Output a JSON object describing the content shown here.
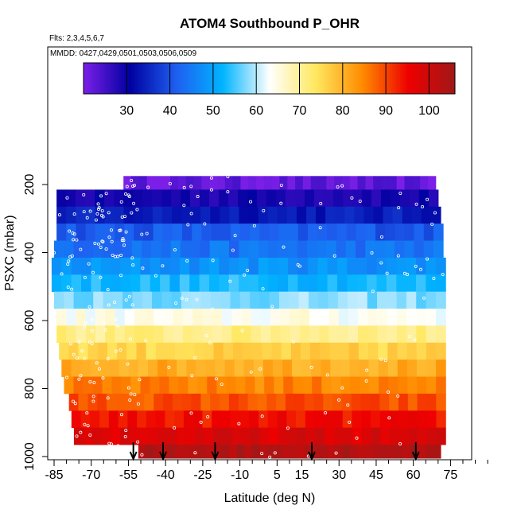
{
  "chart_data": {
    "type": "heatmap",
    "title": "ATOM4 Southbound P_OHR",
    "subtitle_flights": "Flts: 2,3,4,5,6,7",
    "subtitle_dates": "MMDD: 0427,0429,0501,0503,0506,0509",
    "xlabel": "Latitude (deg N)",
    "ylabel": "PSXC (mbar)",
    "xlim": [
      -86,
      92
    ],
    "ylim": [
      1000,
      80
    ],
    "x_ticks": [
      -85,
      -70,
      -55,
      -40,
      -25,
      -10,
      5,
      15,
      30,
      45,
      60,
      75
    ],
    "x_tick_labels": [
      "-85",
      "-70",
      "-55",
      "-40",
      "-25",
      "-10",
      "5",
      "15",
      "30",
      "45",
      "60",
      "75"
    ],
    "y_ticks": [
      200,
      400,
      600,
      800,
      1000
    ],
    "y_tick_labels": [
      "200",
      "400",
      "600",
      "800",
      "1000"
    ],
    "colorbar": {
      "min": 20,
      "max": 106,
      "ticks": [
        30,
        40,
        50,
        60,
        70,
        80,
        90,
        100
      ],
      "tick_labels": [
        "30",
        "40",
        "50",
        "60",
        "70",
        "80",
        "90",
        "100"
      ],
      "colors": [
        "#7b1fe8",
        "#0000a0",
        "#1e5ff0",
        "#00b4ff",
        "#ffffff",
        "#ffe860",
        "#ff8c00",
        "#ee0000",
        "#a01818"
      ]
    },
    "layers": [
      {
        "p_top": 175,
        "p_bot": 215,
        "lat_min": -57,
        "lat_max": 69,
        "value": 22
      },
      {
        "p_top": 215,
        "p_bot": 265,
        "lat_min": -84,
        "lat_max": 70,
        "value": 29
      },
      {
        "p_top": 265,
        "p_bot": 315,
        "lat_min": -84,
        "lat_max": 71,
        "value": 34
      },
      {
        "p_top": 315,
        "p_bot": 365,
        "lat_min": -84,
        "lat_max": 72,
        "value": 41
      },
      {
        "p_top": 365,
        "p_bot": 415,
        "lat_min": -85,
        "lat_max": 72,
        "value": 44
      },
      {
        "p_top": 415,
        "p_bot": 465,
        "lat_min": -86,
        "lat_max": 73,
        "value": 48
      },
      {
        "p_top": 465,
        "p_bot": 515,
        "lat_min": -86,
        "lat_max": 73,
        "value": 53
      },
      {
        "p_top": 515,
        "p_bot": 565,
        "lat_min": -85,
        "lat_max": 73,
        "value": 58
      },
      {
        "p_top": 565,
        "p_bot": 615,
        "lat_min": -84,
        "lat_max": 73,
        "value": 64
      },
      {
        "p_top": 615,
        "p_bot": 665,
        "lat_min": -84,
        "lat_max": 73,
        "value": 71
      },
      {
        "p_top": 665,
        "p_bot": 715,
        "lat_min": -83,
        "lat_max": 73,
        "value": 76
      },
      {
        "p_top": 715,
        "p_bot": 765,
        "lat_min": -82,
        "lat_max": 73,
        "value": 81
      },
      {
        "p_top": 765,
        "p_bot": 815,
        "lat_min": -81,
        "lat_max": 73,
        "value": 85
      },
      {
        "p_top": 815,
        "p_bot": 865,
        "lat_min": -79,
        "lat_max": 73,
        "value": 89
      },
      {
        "p_top": 865,
        "p_bot": 915,
        "lat_min": -78,
        "lat_max": 73,
        "value": 94
      },
      {
        "p_top": 915,
        "p_bot": 965,
        "lat_min": -77,
        "lat_max": 73,
        "value": 98
      },
      {
        "p_top": 965,
        "p_bot": 1005,
        "lat_min": -51,
        "lat_max": 71,
        "value": 104
      }
    ],
    "profile_arrows_lat": [
      -53,
      -41,
      -20,
      19,
      61
    ]
  }
}
